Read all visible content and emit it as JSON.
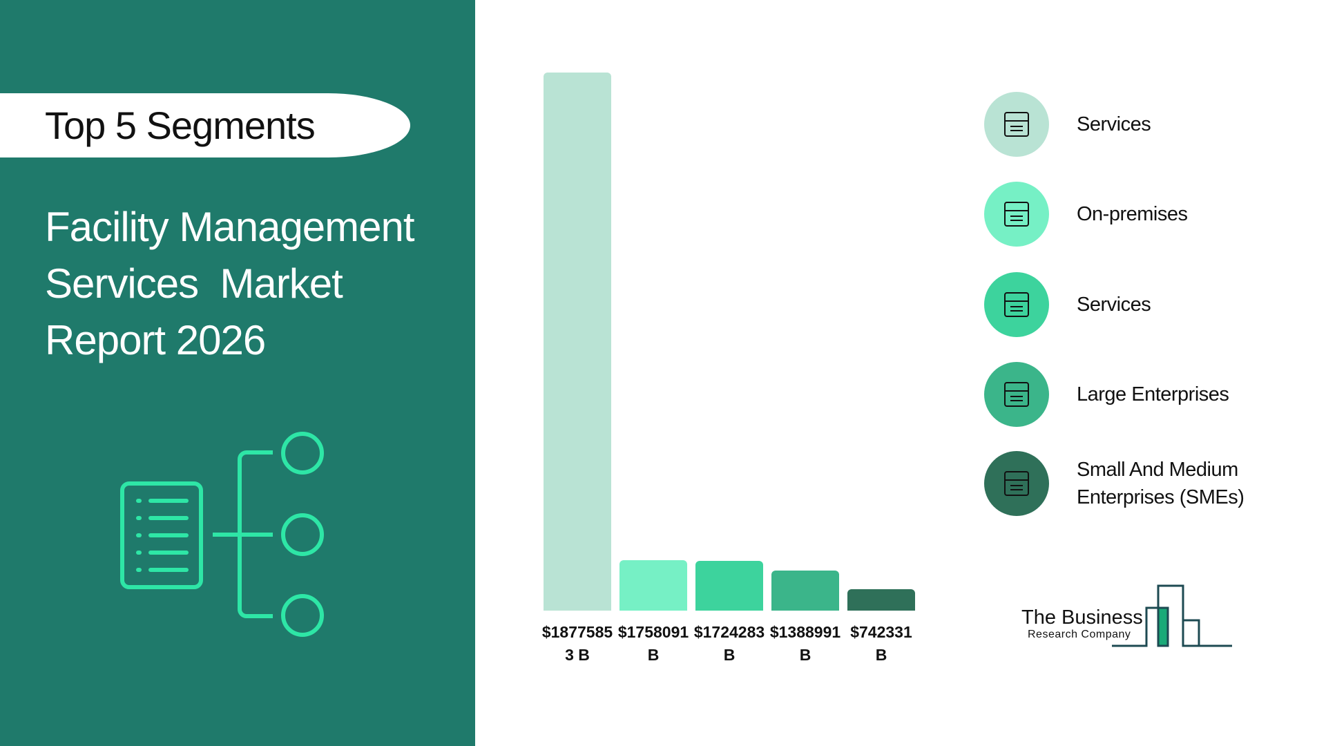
{
  "header": {
    "tag": "Top 5 Segments",
    "title": "Facility Management Services  Market Report 2026"
  },
  "chart_data": {
    "type": "bar",
    "categories": [
      "Services",
      "On-premises",
      "Services",
      "Large Enterprises",
      "Small And Medium Enterprises (SMEs)"
    ],
    "values": [
      18775853,
      1758091,
      1724283,
      1388991,
      742331
    ],
    "value_labels": [
      "$18775853 B",
      "$1758091 B",
      "$1724283 B",
      "$1388991 B",
      "$742331 B"
    ],
    "colors": [
      "#b9e3d4",
      "#76f0c5",
      "#3dd39d",
      "#3bb58a",
      "#2f7059"
    ]
  },
  "logo": {
    "name": "The Business",
    "tagline": "Research Company"
  }
}
